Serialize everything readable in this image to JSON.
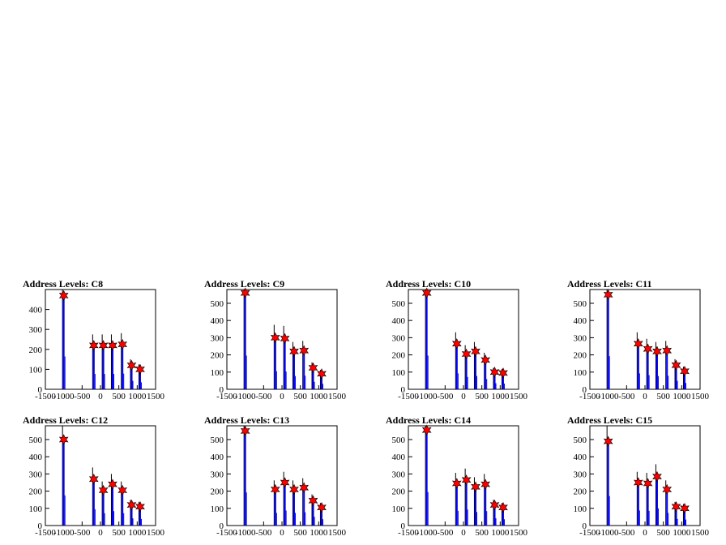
{
  "colors": {
    "histogram": "#0000ff",
    "peak_marker": "#ff0000",
    "frame": "#000000"
  },
  "chart_data": [
    {
      "type": "bar",
      "title": "Address Levels: C8",
      "ylim": [
        0,
        500
      ],
      "xlim": [
        -1500,
        1500
      ],
      "xticks": [
        "-1500",
        "-1000",
        "-500",
        "0",
        "500",
        "1000",
        "1500"
      ],
      "yticks": [
        "0",
        "100",
        "200",
        "300",
        "400"
      ],
      "peaks": [
        {
          "x": -1000,
          "y": 470
        },
        {
          "x": -180,
          "y": 220
        },
        {
          "x": 80,
          "y": 220
        },
        {
          "x": 330,
          "y": 220
        },
        {
          "x": 600,
          "y": 225
        },
        {
          "x": 850,
          "y": 120
        },
        {
          "x": 1080,
          "y": 100
        }
      ]
    },
    {
      "type": "bar",
      "title": "Address Levels: C9",
      "ylim": [
        0,
        580
      ],
      "xlim": [
        -1500,
        1500
      ],
      "xticks": [
        "-1500",
        "-1000",
        "-500",
        "0",
        "500",
        "1000",
        "1500"
      ],
      "yticks": [
        "0",
        "100",
        "200",
        "300",
        "400",
        "500"
      ],
      "peaks": [
        {
          "x": -1000,
          "y": 560
        },
        {
          "x": -180,
          "y": 300
        },
        {
          "x": 80,
          "y": 295
        },
        {
          "x": 330,
          "y": 220
        },
        {
          "x": 600,
          "y": 225
        },
        {
          "x": 850,
          "y": 125
        },
        {
          "x": 1080,
          "y": 90
        }
      ]
    },
    {
      "type": "bar",
      "title": "Address Levels: C10",
      "ylim": [
        0,
        580
      ],
      "xlim": [
        -1500,
        1500
      ],
      "xticks": [
        "-1500",
        "-1000",
        "-500",
        "0",
        "500",
        "1000",
        "1500"
      ],
      "yticks": [
        "0",
        "100",
        "200",
        "300",
        "400",
        "500"
      ],
      "peaks": [
        {
          "x": -1000,
          "y": 560
        },
        {
          "x": -180,
          "y": 265
        },
        {
          "x": 80,
          "y": 205
        },
        {
          "x": 330,
          "y": 220
        },
        {
          "x": 600,
          "y": 170
        },
        {
          "x": 850,
          "y": 100
        },
        {
          "x": 1080,
          "y": 95
        }
      ]
    },
    {
      "type": "bar",
      "title": "Address Levels: C11",
      "ylim": [
        0,
        580
      ],
      "xlim": [
        -1500,
        1500
      ],
      "xticks": [
        "-1500",
        "-1000",
        "-500",
        "0",
        "500",
        "1000",
        "1500"
      ],
      "yticks": [
        "0",
        "100",
        "200",
        "300",
        "400",
        "500"
      ],
      "peaks": [
        {
          "x": -1000,
          "y": 550
        },
        {
          "x": -180,
          "y": 265
        },
        {
          "x": 80,
          "y": 235
        },
        {
          "x": 330,
          "y": 220
        },
        {
          "x": 600,
          "y": 225
        },
        {
          "x": 850,
          "y": 140
        },
        {
          "x": 1080,
          "y": 105
        }
      ]
    },
    {
      "type": "bar",
      "title": "Address Levels: C12",
      "ylim": [
        0,
        580
      ],
      "xlim": [
        -1500,
        1500
      ],
      "xticks": [
        "-1500",
        "-1000",
        "-500",
        "0",
        "500",
        "1000",
        "1500"
      ],
      "yticks": [
        "0",
        "100",
        "200",
        "300",
        "400",
        "500"
      ],
      "peaks": [
        {
          "x": -1000,
          "y": 500
        },
        {
          "x": -180,
          "y": 270
        },
        {
          "x": 80,
          "y": 205
        },
        {
          "x": 330,
          "y": 240
        },
        {
          "x": 600,
          "y": 205
        },
        {
          "x": 850,
          "y": 120
        },
        {
          "x": 1080,
          "y": 110
        }
      ]
    },
    {
      "type": "bar",
      "title": "Address Levels: C13",
      "ylim": [
        0,
        580
      ],
      "xlim": [
        -1500,
        1500
      ],
      "xticks": [
        "-1500",
        "-1000",
        "-500",
        "0",
        "500",
        "1000",
        "1500"
      ],
      "yticks": [
        "0",
        "100",
        "200",
        "300",
        "400",
        "500"
      ],
      "peaks": [
        {
          "x": -1000,
          "y": 550
        },
        {
          "x": -180,
          "y": 210
        },
        {
          "x": 80,
          "y": 250
        },
        {
          "x": 330,
          "y": 210
        },
        {
          "x": 600,
          "y": 220
        },
        {
          "x": 850,
          "y": 145
        },
        {
          "x": 1080,
          "y": 105
        }
      ]
    },
    {
      "type": "bar",
      "title": "Address Levels: C14",
      "ylim": [
        0,
        580
      ],
      "xlim": [
        -1500,
        1500
      ],
      "xticks": [
        "-1500",
        "-1000",
        "-500",
        "0",
        "500",
        "1000",
        "1500"
      ],
      "yticks": [
        "0",
        "100",
        "200",
        "300",
        "400",
        "500"
      ],
      "peaks": [
        {
          "x": -1000,
          "y": 555
        },
        {
          "x": -180,
          "y": 245
        },
        {
          "x": 80,
          "y": 265
        },
        {
          "x": 330,
          "y": 225
        },
        {
          "x": 600,
          "y": 240
        },
        {
          "x": 850,
          "y": 120
        },
        {
          "x": 1080,
          "y": 105
        }
      ]
    },
    {
      "type": "bar",
      "title": "Address Levels: C15",
      "ylim": [
        0,
        580
      ],
      "xlim": [
        -1500,
        1500
      ],
      "xticks": [
        "-1500",
        "-1000",
        "-500",
        "0",
        "500",
        "1000",
        "1500"
      ],
      "yticks": [
        "0",
        "100",
        "200",
        "300",
        "400",
        "500"
      ],
      "peaks": [
        {
          "x": -1000,
          "y": 490
        },
        {
          "x": -180,
          "y": 250
        },
        {
          "x": 80,
          "y": 245
        },
        {
          "x": 330,
          "y": 285
        },
        {
          "x": 600,
          "y": 210
        },
        {
          "x": 850,
          "y": 110
        },
        {
          "x": 1080,
          "y": 100
        }
      ]
    }
  ]
}
